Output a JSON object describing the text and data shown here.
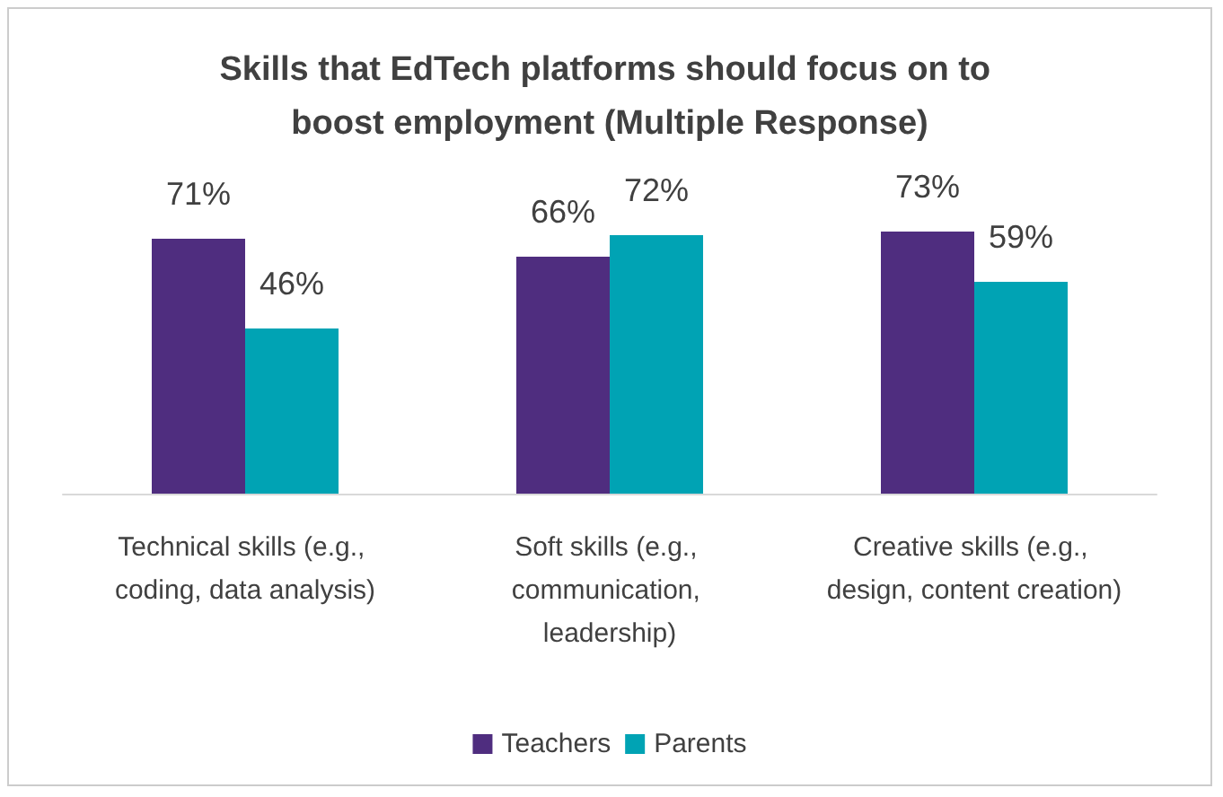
{
  "chart_data": {
    "type": "bar",
    "title": "Skills that EdTech platforms should focus on to boost employment (Multiple Response)",
    "categories": [
      "Technical skills (e.g., coding, data analysis)",
      "Soft skills (e.g., communication, leadership)",
      "Creative skills (e.g., design, content creation)"
    ],
    "series": [
      {
        "name": "Teachers",
        "color": "#4f2d7f",
        "values": [
          71,
          66,
          73
        ],
        "value_labels": [
          "71%",
          "66%",
          "73%"
        ]
      },
      {
        "name": "Parents",
        "color": "#00a3b4",
        "values": [
          46,
          72,
          59
        ],
        "value_labels": [
          "46%",
          "72%",
          "59%"
        ]
      }
    ],
    "legend": "bottom"
  }
}
